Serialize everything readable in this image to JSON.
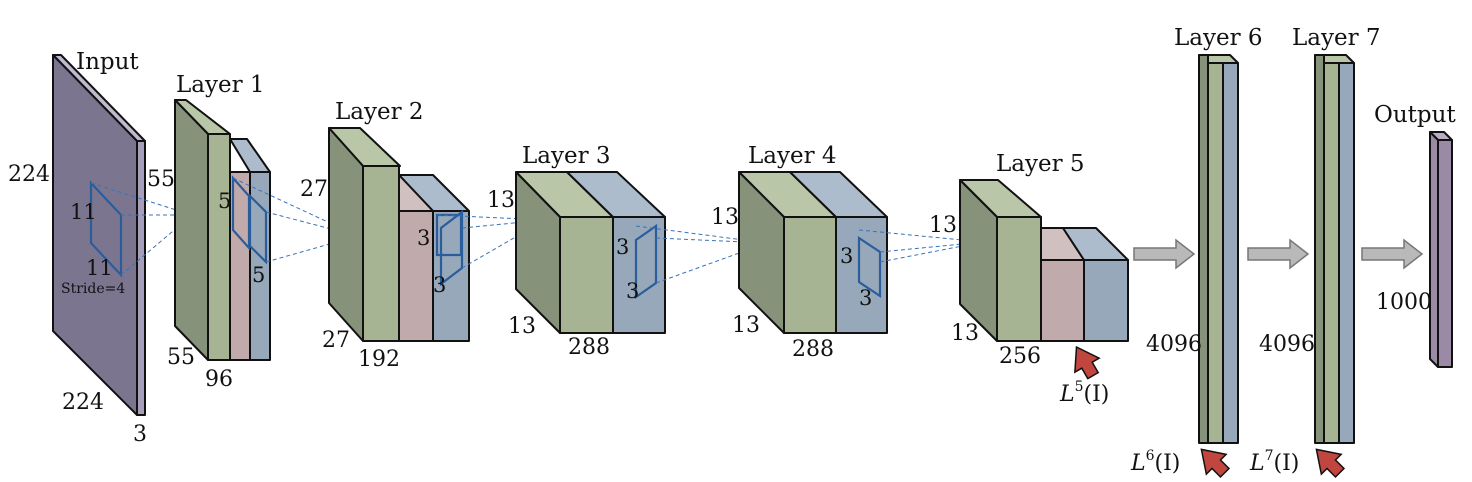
{
  "colors": {
    "input_front": "#7c7590",
    "input_side": "#a79fb9",
    "input_top": "#c0b9d0",
    "green_front": "#a6b493",
    "green_side": "#86927a",
    "green_top": "#b9c6a7",
    "pink_front": "#c1aaab",
    "pink_top": "#d1c0c0",
    "blue_front": "#97a8bb",
    "blue_side": "#7f90a4",
    "blue_top": "#adbccd",
    "output_front": "#9a8aa6",
    "output_top": "#b9acc4",
    "arrow_gray": "#b9b9b9",
    "arrow_red": "#c0463f",
    "kernel_blue": "#2a5d9c"
  },
  "input": {
    "title": "Input",
    "height": "224",
    "width": "224",
    "depth": "3",
    "kernel_h": "11",
    "kernel_w": "11",
    "stride": "Stride=4"
  },
  "layer1": {
    "title": "Layer 1",
    "height": "55",
    "width": "55",
    "depth": "96",
    "kernel_h": "5",
    "kernel_w": "5"
  },
  "layer2": {
    "title": "Layer 2",
    "height": "27",
    "width": "27",
    "depth": "192",
    "kernel_h": "3",
    "kernel_w": "3"
  },
  "layer3": {
    "title": "Layer 3",
    "height": "13",
    "width": "13",
    "depth": "288",
    "kernel_h": "3",
    "kernel_w": "3"
  },
  "layer4": {
    "title": "Layer 4",
    "height": "13",
    "width": "13",
    "depth": "288",
    "kernel_h": "3",
    "kernel_w": "3"
  },
  "layer5": {
    "title": "Layer 5",
    "height": "13",
    "width": "13",
    "depth": "256",
    "feature": "L",
    "feature_sup": "5",
    "feature_arg": "(I)"
  },
  "layer6": {
    "title": "Layer 6",
    "units": "4096",
    "feature": "L",
    "feature_sup": "6",
    "feature_arg": "(I)"
  },
  "layer7": {
    "title": "Layer 7",
    "units": "4096",
    "feature": "L",
    "feature_sup": "7",
    "feature_arg": "(I)"
  },
  "output": {
    "title": "Output",
    "units": "1000"
  }
}
